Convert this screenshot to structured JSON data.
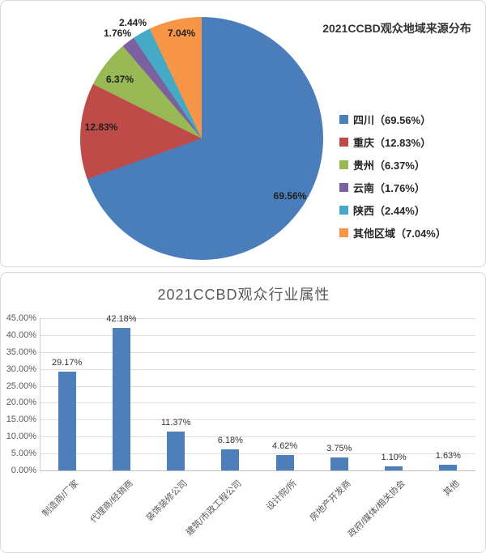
{
  "chart_data": [
    {
      "type": "pie",
      "title": "2021CCBD观众地域来源分布",
      "labels": [
        "四川",
        "重庆",
        "贵州",
        "云南",
        "陕西",
        "其他区域"
      ],
      "values": [
        69.56,
        12.83,
        6.37,
        1.76,
        2.44,
        7.04
      ],
      "slice_labels": [
        "69.56%",
        "12.83%",
        "6.37%",
        "1.76%",
        "2.44%",
        "7.04%"
      ],
      "legend": [
        "四川（69.56%）",
        "重庆（12.83%）",
        "贵州（6.37%）",
        "云南（1.76%）",
        "陕西（2.44%）",
        "其他区域（7.04%）"
      ],
      "colors": [
        "#4a7ebb",
        "#be4b48",
        "#98b954",
        "#7d60a0",
        "#45aac6",
        "#f79646"
      ],
      "legend_position": "right",
      "start_angle_deg": 0,
      "direction": "clockwise"
    },
    {
      "type": "bar",
      "title": "2021CCBD观众行业属性",
      "categories": [
        "制造商/厂家",
        "代理商/经销商",
        "装饰装修公司",
        "建筑/市政工程公司",
        "设计院/所",
        "房地产开发商",
        "政府/媒体/相关协会",
        "其他"
      ],
      "values": [
        29.17,
        42.18,
        11.37,
        6.18,
        4.62,
        3.75,
        1.1,
        1.63
      ],
      "value_labels": [
        "29.17%",
        "42.18%",
        "11.37%",
        "6.18%",
        "4.62%",
        "3.75%",
        "1.10%",
        "1.63%"
      ],
      "y_ticks": [
        "45.00%",
        "40.00%",
        "35.00%",
        "30.00%",
        "25.00%",
        "20.00%",
        "15.00%",
        "10.00%",
        "5.00%",
        "0.00%"
      ],
      "ylim": [
        0,
        45
      ],
      "xlabel": "",
      "ylabel": "",
      "grid": "horizontal",
      "bar_color": "#4e7fba"
    }
  ]
}
